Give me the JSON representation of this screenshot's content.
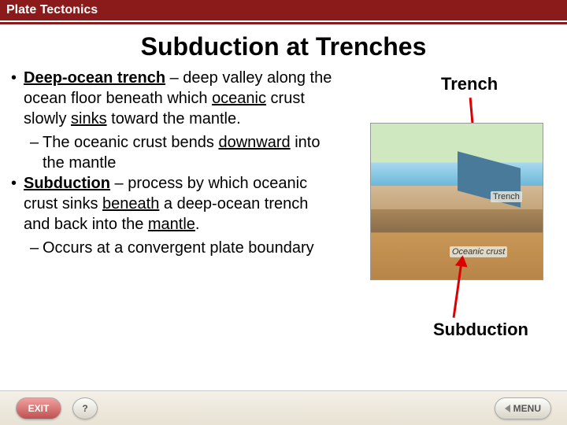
{
  "header": {
    "section": "Plate Tectonics"
  },
  "title": "Subduction at Trenches",
  "bullets": {
    "b1_term": "Deep-ocean trench",
    "b1_rest1": " – deep valley along the ocean floor beneath which ",
    "b1_u2": "oceanic",
    "b1_rest2": " crust slowly ",
    "b1_u3": "sinks",
    "b1_rest3": " toward the mantle.",
    "b1s_pre": "The oceanic crust bends ",
    "b1s_u": "downward",
    "b1s_post": " into the mantle",
    "b2_term": "Subduction",
    "b2_rest1": " – process by which oceanic crust sinks ",
    "b2_u2": "beneath",
    "b2_rest2": " a deep-ocean trench and back into the ",
    "b2_u3": "mantle",
    "b2_rest3": ".",
    "b2s": "Occurs at a convergent plate boundary"
  },
  "figure": {
    "label_trench": "Trench",
    "label_subduction": "Subduction",
    "diag_trench": "Trench",
    "diag_ocean": "Oceanic crust",
    "arrow_color": "#d00000"
  },
  "footer": {
    "exit": "EXIT",
    "help": "?",
    "menu": "MENU"
  },
  "colors": {
    "brand": "#8b1a1a",
    "bg": "#ffffff"
  }
}
